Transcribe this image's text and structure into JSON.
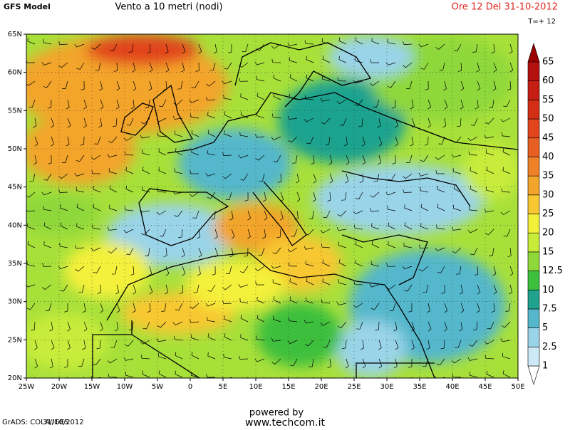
{
  "header": {
    "model": "GFS Model",
    "title": "Vento a 10 metri (nodi)",
    "run": "Ore 12 Del 31-10-2012",
    "step": "T=+ 12"
  },
  "map": {
    "xlim": [
      -25,
      50
    ],
    "ylim": [
      20,
      65
    ],
    "xticks": [
      {
        "value": -25,
        "label": "25W"
      },
      {
        "value": -20,
        "label": "20W"
      },
      {
        "value": -15,
        "label": "15W"
      },
      {
        "value": -10,
        "label": "10W"
      },
      {
        "value": -5,
        "label": "5W"
      },
      0,
      {
        "value": 5,
        "label": "5E"
      },
      {
        "value": 10,
        "label": "10E"
      },
      {
        "value": 15,
        "label": "15E"
      },
      {
        "value": 20,
        "label": "20E"
      },
      {
        "value": 25,
        "label": "25E"
      },
      {
        "value": 30,
        "label": "30E"
      },
      {
        "value": 35,
        "label": "35E"
      },
      {
        "value": 40,
        "label": "40E"
      },
      {
        "value": 45,
        "label": "45E"
      },
      {
        "value": 50,
        "label": "50E"
      }
    ],
    "yticks": [
      {
        "value": 20,
        "label": "20N"
      },
      {
        "value": 25,
        "label": "25N"
      },
      {
        "value": 30,
        "label": "30N"
      },
      {
        "value": 35,
        "label": "35N"
      },
      {
        "value": 40,
        "label": "40N"
      },
      {
        "value": 45,
        "label": "45N"
      },
      {
        "value": 50,
        "label": "50N"
      },
      {
        "value": 55,
        "label": "55N"
      },
      {
        "value": 60,
        "label": "60N"
      },
      {
        "value": 65,
        "label": "65N"
      }
    ],
    "grid": true
  },
  "colorbar": {
    "levels": [
      1,
      2.5,
      5,
      7.5,
      10,
      12.5,
      15,
      20,
      25,
      30,
      35,
      40,
      45,
      50,
      55,
      60,
      65
    ],
    "colors": [
      "#ffffff",
      "#cde9f7",
      "#9ad4e8",
      "#55b7cb",
      "#1fa38f",
      "#3cbf3c",
      "#8fd83a",
      "#c8ec3a",
      "#f4f03a",
      "#f8c832",
      "#f3a42a",
      "#ef8228",
      "#e85f22",
      "#e2441e",
      "#d42e16",
      "#c61e12",
      "#b41010",
      "#9a0000"
    ]
  },
  "footer": {
    "powered": "powered by",
    "site": "www.techcom.it",
    "grads": "GrADS: COLA/IGES",
    "date": "31/10/2012"
  }
}
